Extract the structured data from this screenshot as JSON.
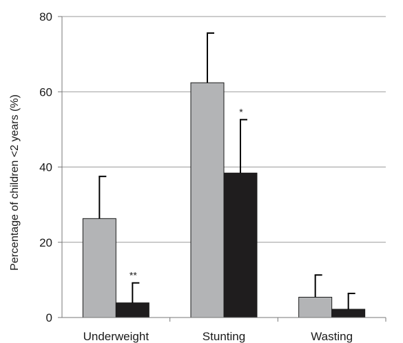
{
  "chart_data": {
    "type": "bar",
    "title": "",
    "xlabel": "",
    "ylabel": "Percentage of children <2 years (%)",
    "ylim": [
      0,
      80
    ],
    "yticks": [
      0,
      20,
      40,
      60,
      80
    ],
    "grid": true,
    "categories": [
      "Underweight",
      "Stunting",
      "Wasting"
    ],
    "series": [
      {
        "color": "#b3b4b6",
        "values": [
          26.3,
          62.4,
          5.4
        ],
        "errors": [
          11.2,
          13.2,
          5.9
        ]
      },
      {
        "color": "#1f1d1e",
        "values": [
          3.9,
          38.4,
          2.2
        ],
        "errors": [
          5.3,
          14.2,
          4.2
        ]
      }
    ],
    "annotations": [
      "**",
      "*",
      ""
    ]
  }
}
